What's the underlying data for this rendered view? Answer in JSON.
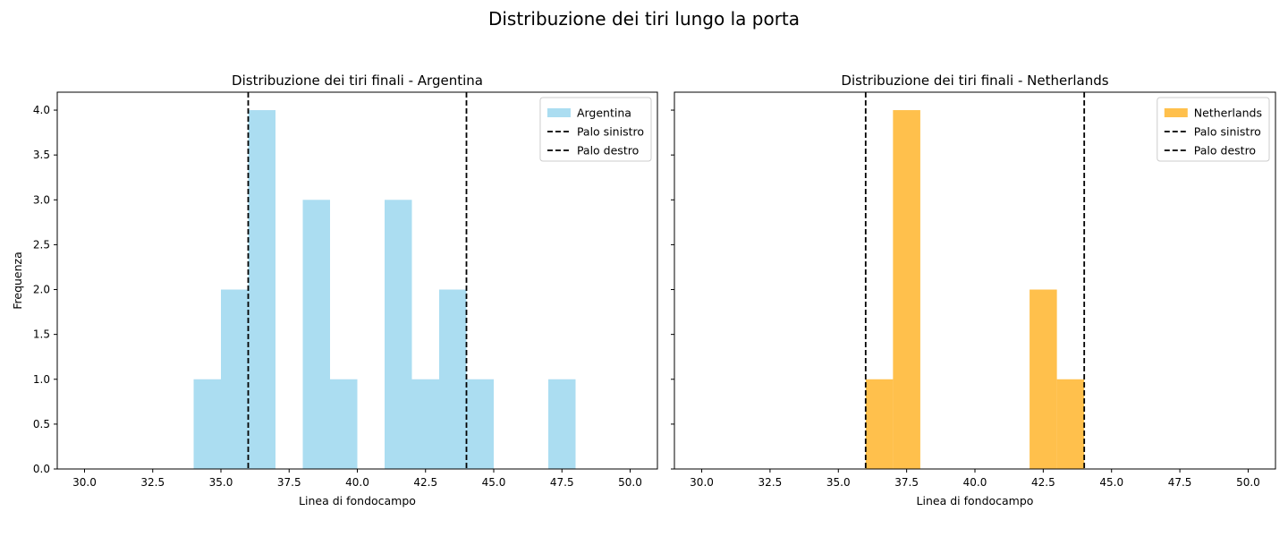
{
  "suptitle": "Distribuzione dei tiri lungo la porta",
  "chart_data": [
    {
      "type": "bar",
      "title": "Distribuzione dei tiri finali - Argentina",
      "xlabel": "Linea di fondocampo",
      "ylabel": "Frequenza",
      "xlim": [
        29,
        51
      ],
      "ylim": [
        0,
        4.2
      ],
      "xticks": [
        "30.0",
        "32.5",
        "35.0",
        "37.5",
        "40.0",
        "42.5",
        "45.0",
        "47.5",
        "50.0"
      ],
      "yticks": [
        "0.0",
        "0.5",
        "1.0",
        "1.5",
        "2.0",
        "2.5",
        "3.0",
        "3.5",
        "4.0"
      ],
      "bin_edges": [
        30,
        31,
        32,
        33,
        34,
        35,
        36,
        37,
        38,
        39,
        40,
        41,
        42,
        43,
        44,
        45,
        46,
        47,
        48,
        49,
        50
      ],
      "series": [
        {
          "name": "Argentina",
          "color": "#87ceeb",
          "values": [
            0,
            0,
            0,
            0,
            1,
            2,
            4,
            0,
            3,
            1,
            0,
            3,
            1,
            2,
            1,
            0,
            0,
            1,
            0,
            0
          ]
        }
      ],
      "vlines": [
        {
          "name": "Palo sinistro",
          "x": 36
        },
        {
          "name": "Palo destro",
          "x": 44
        }
      ],
      "legend": "top-right",
      "grid": false
    },
    {
      "type": "bar",
      "title": "Distribuzione dei tiri finali - Netherlands",
      "xlabel": "Linea di fondocampo",
      "ylabel": "",
      "xlim": [
        29,
        51
      ],
      "ylim": [
        0,
        4.2
      ],
      "xticks": [
        "30.0",
        "32.5",
        "35.0",
        "37.5",
        "40.0",
        "42.5",
        "45.0",
        "47.5",
        "50.0"
      ],
      "yticks": [],
      "bin_edges": [
        30,
        31,
        32,
        33,
        34,
        35,
        36,
        37,
        38,
        39,
        40,
        41,
        42,
        43,
        44,
        45,
        46,
        47,
        48,
        49,
        50
      ],
      "series": [
        {
          "name": "Netherlands",
          "color": "#ffa500",
          "values": [
            0,
            0,
            0,
            0,
            0,
            0,
            1,
            4,
            0,
            0,
            0,
            0,
            2,
            1,
            0,
            0,
            0,
            0,
            0,
            0
          ]
        }
      ],
      "vlines": [
        {
          "name": "Palo sinistro",
          "x": 36
        },
        {
          "name": "Palo destro",
          "x": 44
        }
      ],
      "legend": "top-right",
      "grid": false
    }
  ]
}
